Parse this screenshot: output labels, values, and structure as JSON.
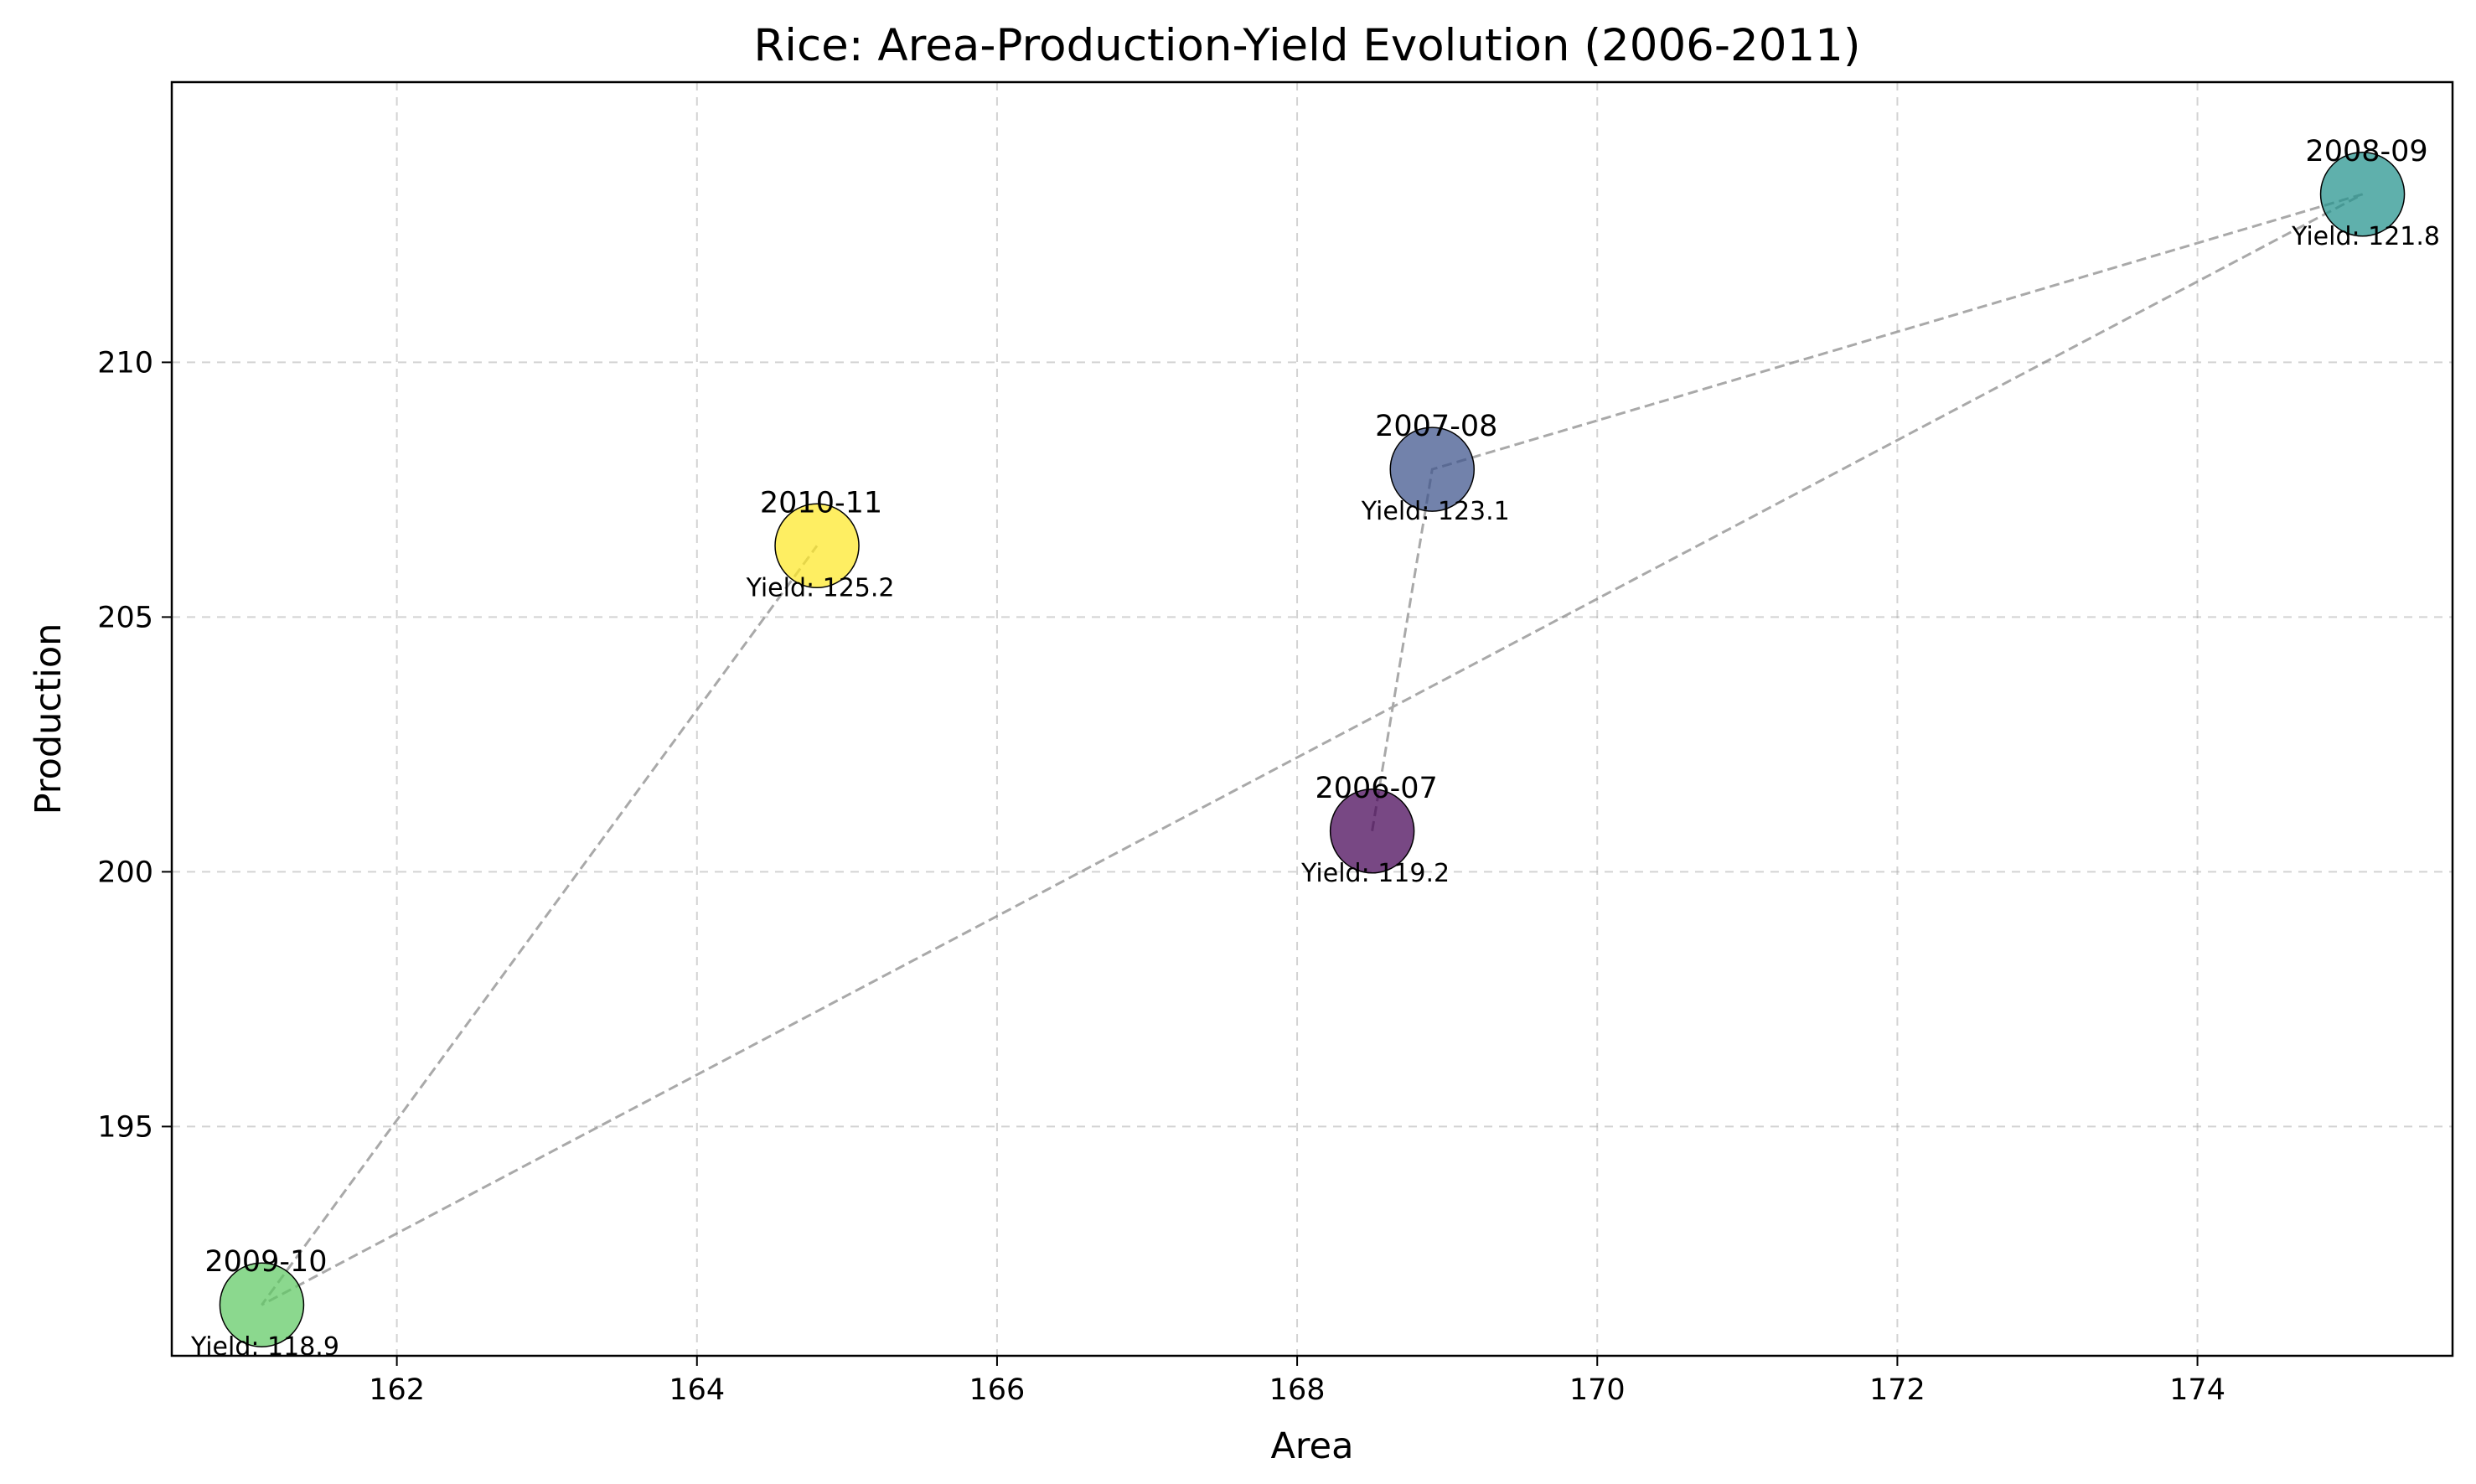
{
  "chart_data": {
    "type": "scatter",
    "title": "Rice: Area-Production-Yield Evolution (2006-2011)",
    "xlabel": "Area",
    "ylabel": "Production",
    "xlim": [
      160.5,
      175.7
    ],
    "ylim": [
      190.5,
      215.5
    ],
    "xticks": [
      162,
      164,
      166,
      168,
      170,
      172,
      174
    ],
    "yticks": [
      195,
      200,
      205,
      210
    ],
    "grid": true,
    "trajectory": true,
    "points": [
      {
        "label": "2006-07",
        "area": 168.5,
        "production": 200.8,
        "yield_text": "Yield: 119.2",
        "color": "#440154"
      },
      {
        "label": "2007-08",
        "area": 168.9,
        "production": 207.9,
        "yield_text": "Yield: 123.1",
        "color": "#3b528b"
      },
      {
        "label": "2008-09",
        "area": 175.1,
        "production": 213.3,
        "yield_text": "Yield: 121.8",
        "color": "#21918c"
      },
      {
        "label": "2009-10",
        "area": 161.1,
        "production": 191.5,
        "yield_text": "Yield: 118.9",
        "color": "#5ec962"
      },
      {
        "label": "2010-11",
        "area": 164.8,
        "production": 206.4,
        "yield_text": "Yield: 125.2",
        "color": "#fde725"
      }
    ]
  }
}
